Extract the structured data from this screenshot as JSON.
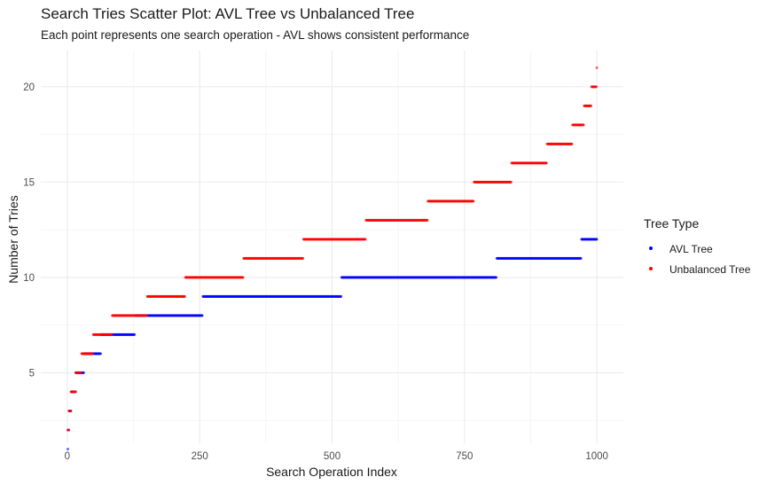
{
  "chart_data": {
    "type": "scatter",
    "title": "Search Tries Scatter Plot: AVL Tree vs Unbalanced Tree",
    "subtitle": "Each point represents one search operation - AVL shows consistent performance",
    "xlabel": "Search Operation Index",
    "ylabel": "Number of Tries",
    "xlim": [
      -50,
      1050
    ],
    "ylim": [
      1.3,
      21.9
    ],
    "x_ticks": [
      0,
      250,
      500,
      750,
      1000
    ],
    "y_ticks": [
      5,
      10,
      15,
      20
    ],
    "grid": true,
    "legend_title": "Tree Type",
    "legend_position": "right",
    "series": [
      {
        "name": "AVL Tree",
        "color": "#0000ff",
        "segments": [
          {
            "tries": 1,
            "x_start": 1,
            "x_end": 1
          },
          {
            "tries": 2,
            "x_start": 2,
            "x_end": 3
          },
          {
            "tries": 3,
            "x_start": 4,
            "x_end": 7
          },
          {
            "tries": 4,
            "x_start": 8,
            "x_end": 15
          },
          {
            "tries": 5,
            "x_start": 16,
            "x_end": 31
          },
          {
            "tries": 6,
            "x_start": 32,
            "x_end": 63
          },
          {
            "tries": 7,
            "x_start": 64,
            "x_end": 127
          },
          {
            "tries": 8,
            "x_start": 128,
            "x_end": 255
          },
          {
            "tries": 9,
            "x_start": 256,
            "x_end": 517
          },
          {
            "tries": 10,
            "x_start": 518,
            "x_end": 810
          },
          {
            "tries": 11,
            "x_start": 811,
            "x_end": 970
          },
          {
            "tries": 12,
            "x_start": 971,
            "x_end": 1000
          }
        ]
      },
      {
        "name": "Unbalanced Tree",
        "color": "#ff0000",
        "segments": [
          {
            "tries": 2,
            "x_start": 1,
            "x_end": 2
          },
          {
            "tries": 3,
            "x_start": 3,
            "x_end": 6
          },
          {
            "tries": 4,
            "x_start": 7,
            "x_end": 16
          },
          {
            "tries": 5,
            "x_start": 17,
            "x_end": 26
          },
          {
            "tries": 6,
            "x_start": 27,
            "x_end": 48
          },
          {
            "tries": 7,
            "x_start": 49,
            "x_end": 84
          },
          {
            "tries": 8,
            "x_start": 85,
            "x_end": 150
          },
          {
            "tries": 9,
            "x_start": 151,
            "x_end": 222
          },
          {
            "tries": 10,
            "x_start": 223,
            "x_end": 332
          },
          {
            "tries": 11,
            "x_start": 333,
            "x_end": 445
          },
          {
            "tries": 12,
            "x_start": 446,
            "x_end": 563
          },
          {
            "tries": 13,
            "x_start": 564,
            "x_end": 680
          },
          {
            "tries": 14,
            "x_start": 681,
            "x_end": 767
          },
          {
            "tries": 15,
            "x_start": 768,
            "x_end": 838
          },
          {
            "tries": 16,
            "x_start": 839,
            "x_end": 905
          },
          {
            "tries": 17,
            "x_start": 906,
            "x_end": 953
          },
          {
            "tries": 18,
            "x_start": 954,
            "x_end": 975
          },
          {
            "tries": 19,
            "x_start": 976,
            "x_end": 989
          },
          {
            "tries": 20,
            "x_start": 990,
            "x_end": 999
          },
          {
            "tries": 21,
            "x_start": 1000,
            "x_end": 1000
          }
        ]
      }
    ]
  }
}
